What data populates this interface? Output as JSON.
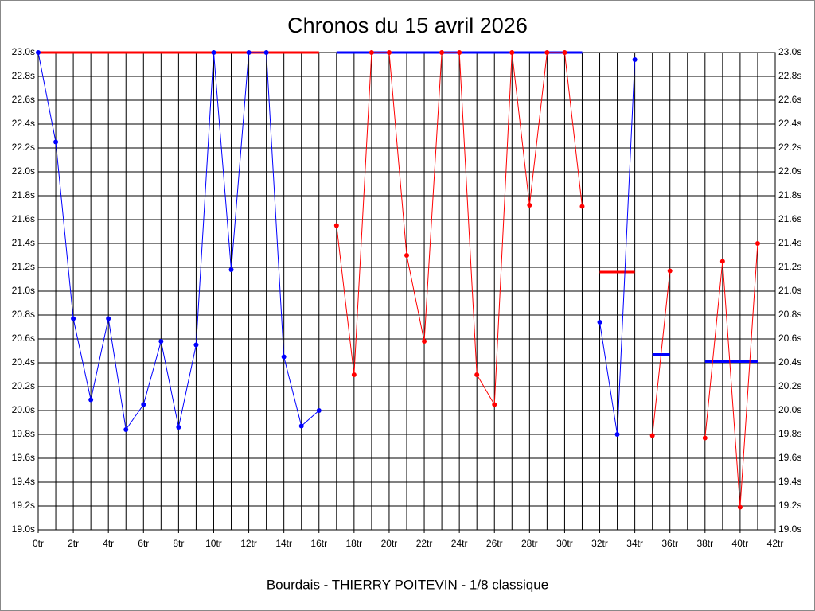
{
  "chart_data": {
    "type": "line",
    "title": "Chronos du 15 avril 2026",
    "x_label": "Bourdais - THIERRY POITEVIN - 1/8 classique",
    "xlim": [
      0,
      42
    ],
    "xticks": [
      {
        "value": 0,
        "label": "0tr"
      },
      {
        "value": 2,
        "label": "2tr"
      },
      {
        "value": 4,
        "label": "4tr"
      },
      {
        "value": 6,
        "label": "6tr"
      },
      {
        "value": 8,
        "label": "8tr"
      },
      {
        "value": 10,
        "label": "10tr"
      },
      {
        "value": 12,
        "label": "12tr"
      },
      {
        "value": 14,
        "label": "14tr"
      },
      {
        "value": 16,
        "label": "16tr"
      },
      {
        "value": 18,
        "label": "18tr"
      },
      {
        "value": 20,
        "label": "20tr"
      },
      {
        "value": 22,
        "label": "22tr"
      },
      {
        "value": 24,
        "label": "24tr"
      },
      {
        "value": 26,
        "label": "26tr"
      },
      {
        "value": 28,
        "label": "28tr"
      },
      {
        "value": 30,
        "label": "30tr"
      },
      {
        "value": 32,
        "label": "32tr"
      },
      {
        "value": 34,
        "label": "34tr"
      },
      {
        "value": 36,
        "label": "36tr"
      },
      {
        "value": 38,
        "label": "38tr"
      },
      {
        "value": 40,
        "label": "40tr"
      },
      {
        "value": 42,
        "label": "42tr"
      }
    ],
    "xgrid_step": 1,
    "ylim": [
      19.0,
      23.0
    ],
    "yticks": [
      {
        "value": 19.0,
        "label": "19.0s"
      },
      {
        "value": 19.2,
        "label": "19.2s"
      },
      {
        "value": 19.4,
        "label": "19.4s"
      },
      {
        "value": 19.6,
        "label": "19.6s"
      },
      {
        "value": 19.8,
        "label": "19.8s"
      },
      {
        "value": 20.0,
        "label": "20.0s"
      },
      {
        "value": 20.2,
        "label": "20.2s"
      },
      {
        "value": 20.4,
        "label": "20.4s"
      },
      {
        "value": 20.6,
        "label": "20.6s"
      },
      {
        "value": 20.8,
        "label": "20.8s"
      },
      {
        "value": 21.0,
        "label": "21.0s"
      },
      {
        "value": 21.2,
        "label": "21.2s"
      },
      {
        "value": 21.4,
        "label": "21.4s"
      },
      {
        "value": 21.6,
        "label": "21.6s"
      },
      {
        "value": 21.8,
        "label": "21.8s"
      },
      {
        "value": 22.0,
        "label": "22.0s"
      },
      {
        "value": 22.2,
        "label": "22.2s"
      },
      {
        "value": 22.4,
        "label": "22.4s"
      },
      {
        "value": 22.6,
        "label": "22.6s"
      },
      {
        "value": 22.8,
        "label": "22.8s"
      },
      {
        "value": 23.0,
        "label": "23.0s"
      }
    ],
    "grid": true,
    "series": [
      {
        "color": "#0000ff",
        "x": [
          0,
          1,
          2,
          3,
          4,
          5,
          6,
          7,
          8,
          9,
          10,
          11,
          12,
          13,
          14,
          15,
          16
        ],
        "values": [
          23.0,
          22.25,
          20.77,
          20.09,
          20.77,
          19.84,
          20.05,
          20.58,
          19.86,
          20.55,
          23.0,
          21.18,
          23.0,
          23.0,
          20.45,
          19.87,
          20.0
        ]
      },
      {
        "color": "#ff0000",
        "x": [
          17,
          18,
          19,
          20,
          21,
          22,
          23,
          24,
          25,
          26,
          27,
          28,
          29,
          30,
          31
        ],
        "values": [
          21.55,
          20.3,
          23.0,
          23.0,
          21.3,
          20.58,
          23.0,
          23.0,
          20.3,
          20.05,
          23.0,
          21.72,
          23.0,
          23.0,
          21.71
        ]
      },
      {
        "color": "#0000ff",
        "x": [
          32,
          33,
          34
        ],
        "values": [
          20.74,
          19.8,
          22.94
        ]
      },
      {
        "color": "#ff0000",
        "x": [
          35,
          36
        ],
        "values": [
          19.79,
          21.17
        ]
      },
      {
        "color": "#ff0000",
        "x": [
          38,
          39,
          40,
          41
        ],
        "values": [
          19.77,
          21.25,
          19.19,
          21.4
        ]
      }
    ],
    "averages": [
      {
        "color": "#ff0000",
        "x": [
          0,
          16
        ],
        "value": 23.0
      },
      {
        "color": "#0000ff",
        "x": [
          17,
          31
        ],
        "value": 23.0
      },
      {
        "color": "#ff0000",
        "x": [
          32,
          34
        ],
        "value": 21.16
      },
      {
        "color": "#0000ff",
        "x": [
          35,
          36
        ],
        "value": 20.47
      },
      {
        "color": "#0000ff",
        "x": [
          38,
          41
        ],
        "value": 20.41
      }
    ]
  }
}
